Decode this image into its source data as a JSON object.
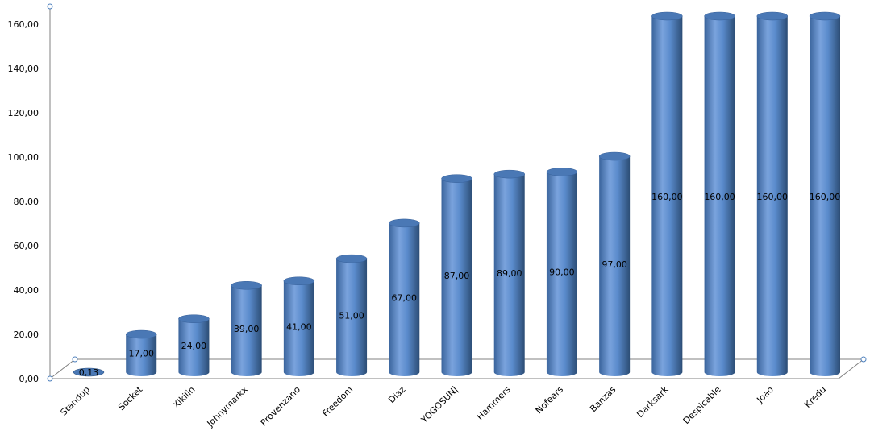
{
  "chart_data": {
    "type": "bar",
    "style": "3d-cylinder",
    "categories": [
      "Standup",
      "Socket",
      "Xikilin",
      "Johnymarkx",
      "Provenzano",
      "Freedom",
      "Diaz",
      "YOGOSUN|",
      "Hammers",
      "Nofears",
      "Banzas",
      "Darksark",
      "Despicable",
      "Joao",
      "Kredu"
    ],
    "values": [
      0.13,
      17,
      24,
      39,
      41,
      51,
      67,
      87,
      89,
      90,
      97,
      160,
      160,
      160,
      160
    ],
    "data_labels": [
      "0,13",
      "17,00",
      "24,00",
      "39,00",
      "41,00",
      "51,00",
      "67,00",
      "87,00",
      "89,00",
      "90,00",
      "97,00",
      "160,00",
      "160,00",
      "160,00",
      "160,00"
    ],
    "y_ticks": [
      "0,00",
      "20,00",
      "40,00",
      "60,00",
      "80,00",
      "100,00",
      "120,00",
      "140,00",
      "160,00"
    ],
    "ylim": [
      0,
      160
    ],
    "title": "",
    "xlabel": "",
    "ylabel": "",
    "grid": false,
    "legend": "none",
    "colors": {
      "bar_light": "#7aa3dd",
      "bar_mid": "#4f81bd",
      "bar_dark": "#2c4d75",
      "bar_top": "#4a78b5",
      "axis": "#808080",
      "handle": "#4f81bd"
    }
  }
}
